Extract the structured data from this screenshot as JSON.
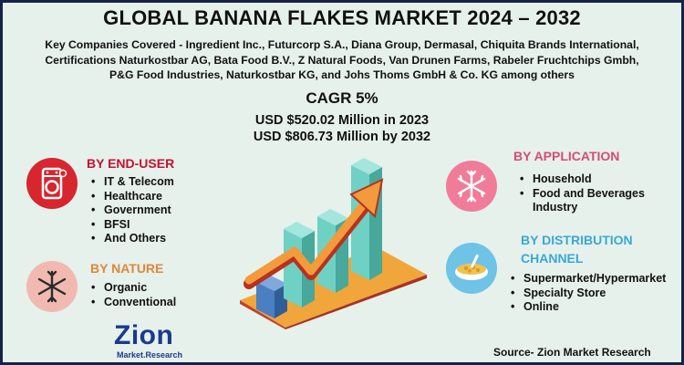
{
  "title": "GLOBAL BANANA FLAKES MARKET 2024 – 2032",
  "companies": {
    "line1": "Key Companies Covered - Ingredient Inc., Futurcorp S.A., Diana Group, Dermasal, Chiquita Brands International,",
    "line2": "Certifications Naturkostbar AG, Bata Food B.V., Z Natural Foods, Van Drunen Farms, Rabeler Fruchtchips Gmbh,",
    "line3": "P&G Food Industries, Naturkostbar KG, and Johs Thoms GmbH & Co. KG among others"
  },
  "cagr": "CAGR 5%",
  "usd_2023": "USD $520.02 Million in 2023",
  "usd_2032": "USD $806.73 Million  by 2032",
  "end_user": {
    "heading": "BY END-USER",
    "items": [
      "IT & Telecom",
      "Healthcare",
      "Government",
      "BFSI",
      "And Others"
    ]
  },
  "nature": {
    "heading": "BY NATURE",
    "items": [
      "Organic",
      "Conventional"
    ]
  },
  "application": {
    "heading": "BY APPLICATION",
    "items": [
      "Household",
      "Food and Beverages Industry"
    ]
  },
  "distribution": {
    "heading_line1": "BY DISTRIBUTION",
    "heading_line2": "CHANNEL",
    "items": [
      "Supermarket/Hypermarket",
      "Specialty Store",
      "Online"
    ]
  },
  "logo": {
    "name": "Zion",
    "subtitle": "Market.Research"
  },
  "source": "Source- Zion Market Research",
  "icons": [
    "washing-machine-icon",
    "snowflake-icon",
    "snowflake-icon",
    "cereal-bowl-icon",
    "bar-chart-arrow-illustration"
  ],
  "colors": {
    "background": "#e6f1ec",
    "border": "#16224a",
    "end_user_heading": "#c8102e",
    "application_heading": "#d94a74",
    "nature_heading": "#e0873a",
    "distribution_heading": "#3aa7d6",
    "logo": "#1b3a8c"
  }
}
